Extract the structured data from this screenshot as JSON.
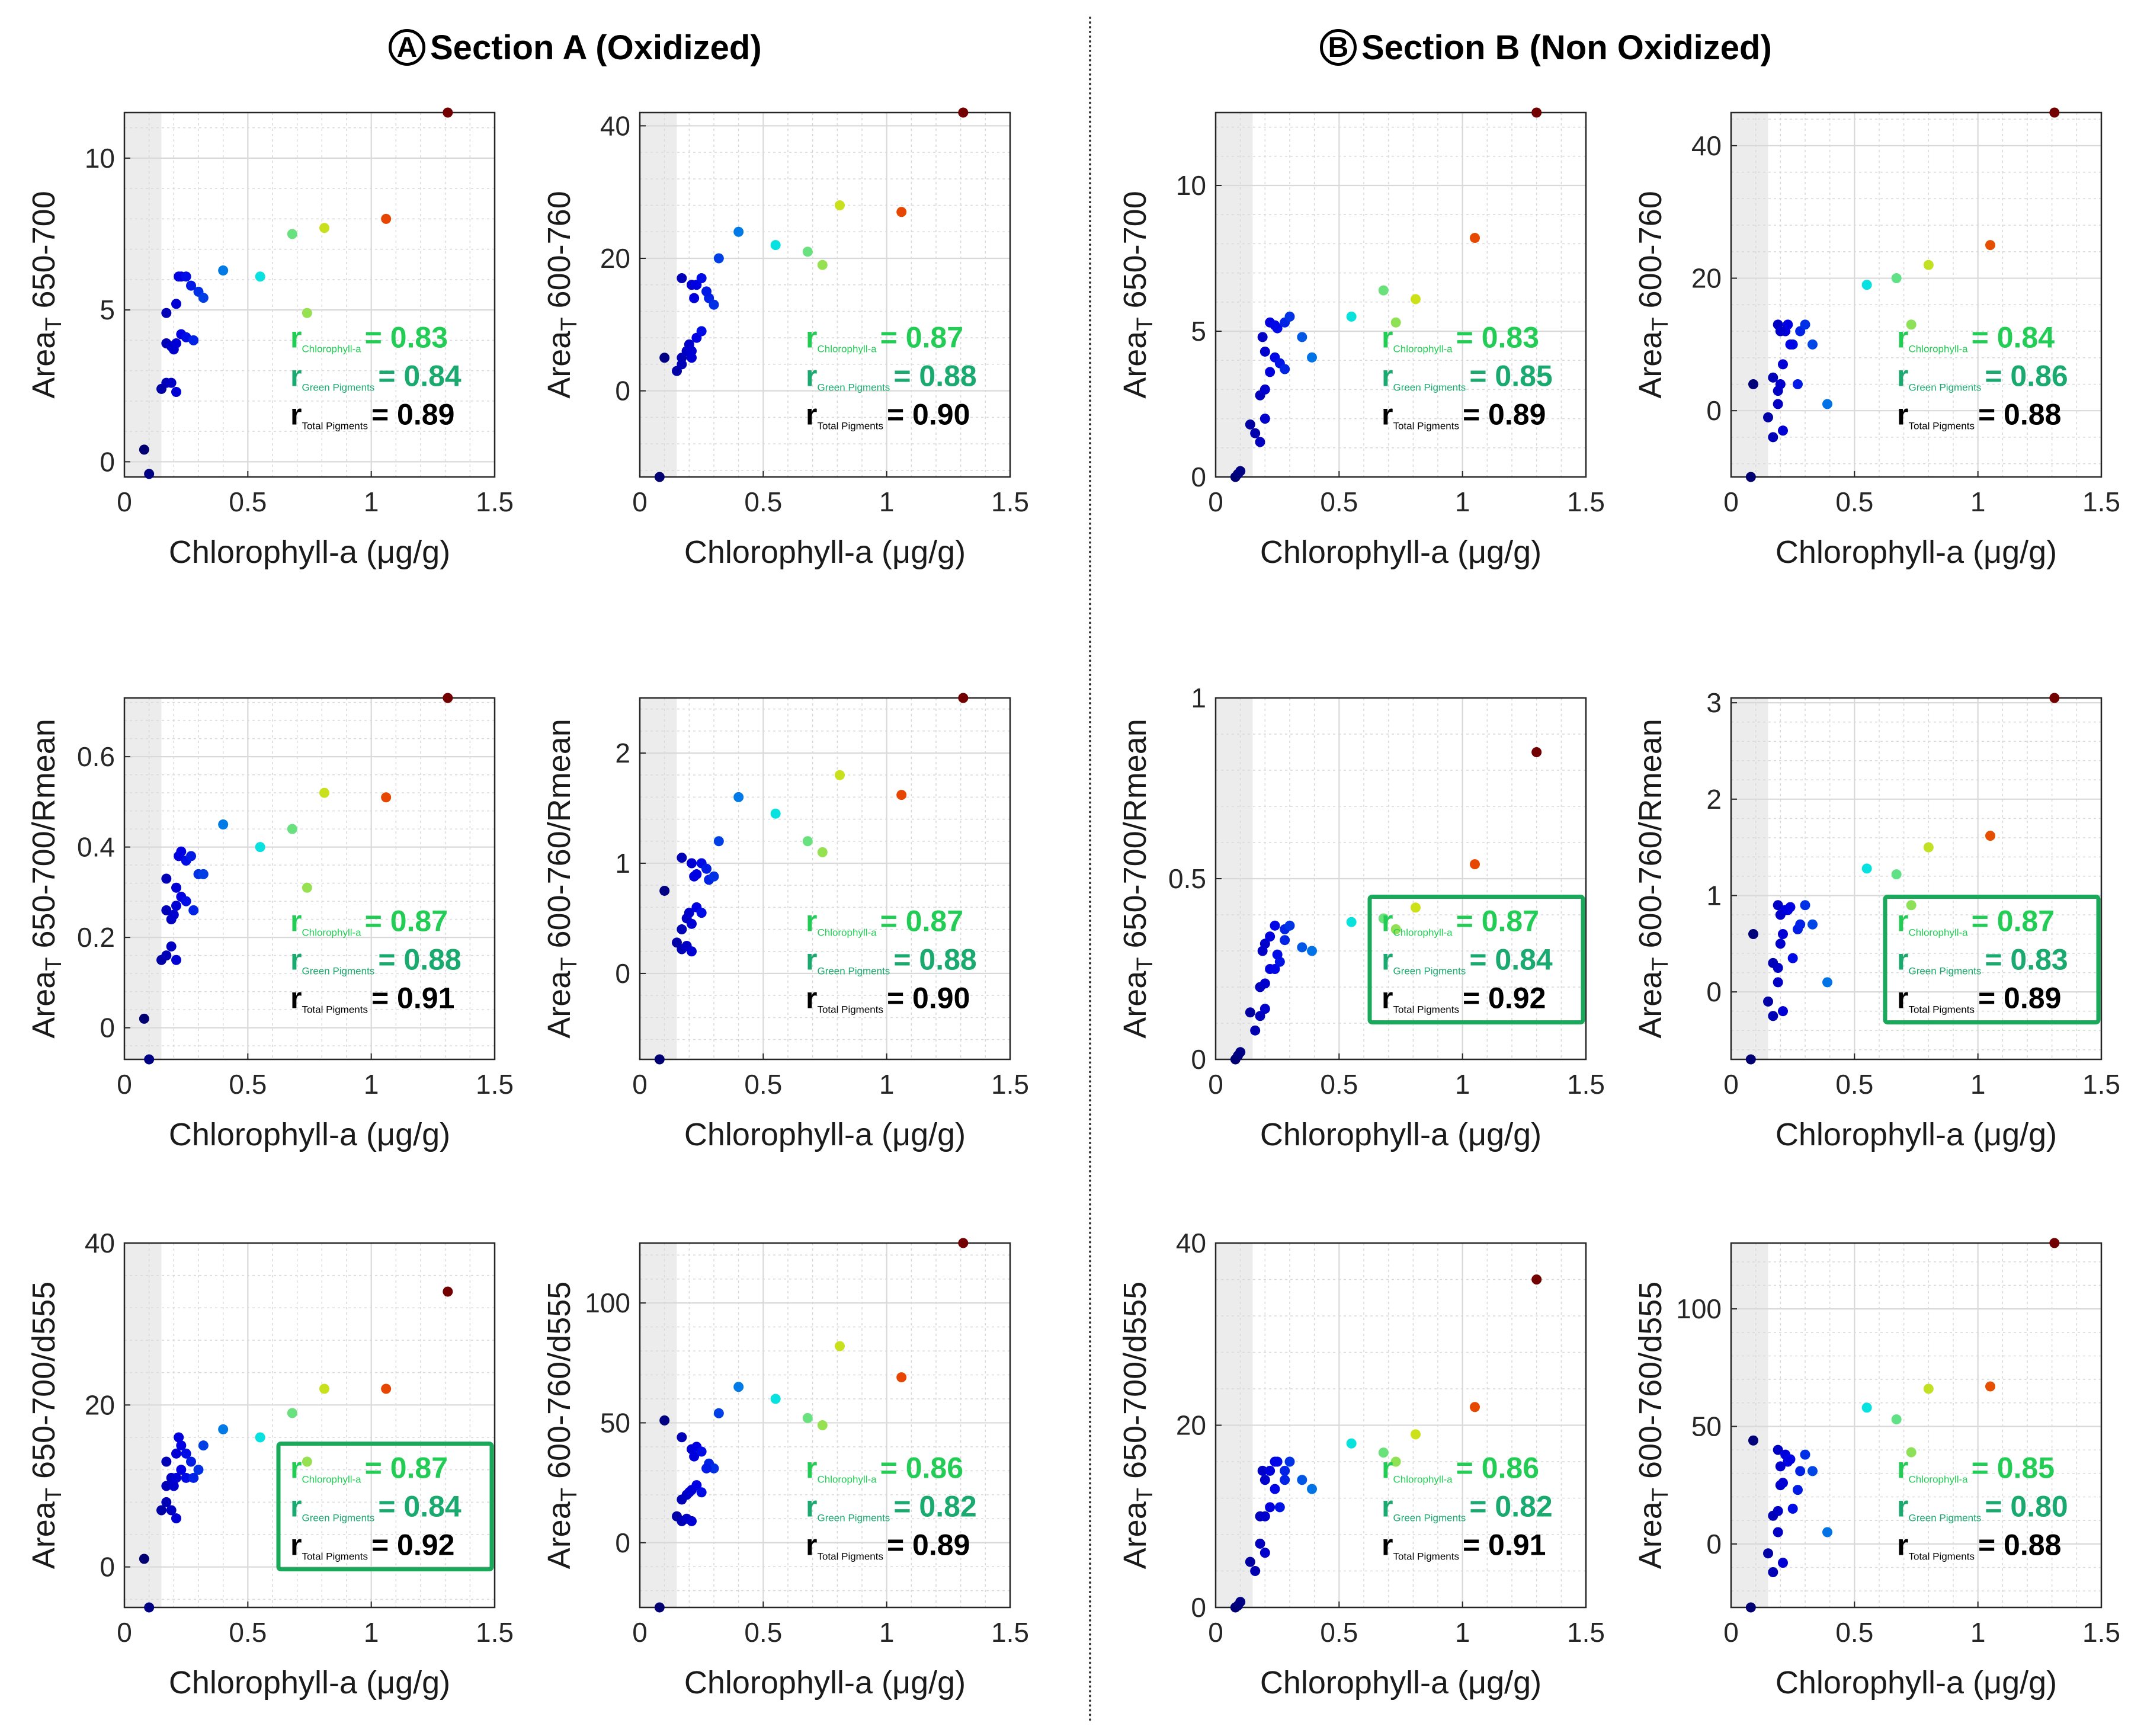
{
  "figure": {
    "section_a": {
      "letter": "A",
      "title": "Section A (Oxidized)"
    },
    "section_b": {
      "letter": "B",
      "title": "Section B (Non Oxidized)"
    },
    "xlabel": "Chlorophyll-a (μg/g)",
    "colors": {
      "axis_box": "#262626",
      "grid": "#d9d9d9",
      "shade": "#ececec",
      "green_r": "#22cc55",
      "teal_r": "#1aaa70",
      "highlight_border": "#1aa85a"
    }
  },
  "chart_data": [
    {
      "id": "A11",
      "section": "A",
      "type": "scatter",
      "ylabel_main": "Area",
      "ylabel_sub": "T",
      "ylabel_rest": " 650-700",
      "xlim": [
        0,
        1.5
      ],
      "ylim": [
        -0.5,
        11.5
      ],
      "xticks": [
        0,
        0.5,
        1,
        1.5
      ],
      "yticks": [
        0,
        5,
        10
      ],
      "x": [
        0.08,
        0.1,
        0.15,
        0.17,
        0.19,
        0.21,
        0.17,
        0.19,
        0.2,
        0.21,
        0.23,
        0.25,
        0.17,
        0.21,
        0.28,
        0.3,
        0.22,
        0.23,
        0.25,
        0.27,
        0.32,
        0.4,
        0.55,
        0.68,
        0.74,
        0.81,
        1.06,
        1.31
      ],
      "y": [
        0.4,
        -0.4,
        2.4,
        2.6,
        2.6,
        2.3,
        3.9,
        3.8,
        3.7,
        3.9,
        4.2,
        4.1,
        4.9,
        5.2,
        4.0,
        5.6,
        6.1,
        6.1,
        6.1,
        5.8,
        5.4,
        6.3,
        6.1,
        7.5,
        4.9,
        7.7,
        8.0,
        11.5
      ],
      "annotation": {
        "r_chl_label": "Chlorophyll-a",
        "r_chl": "= 0.83",
        "r_green_label": "Green Pigments",
        "r_green": "= 0.84",
        "r_total_label": "Total Pigments",
        "r_total": "= 0.89",
        "boxed": false
      }
    },
    {
      "id": "A12",
      "section": "A",
      "type": "scatter",
      "ylabel_main": "Area",
      "ylabel_sub": "T",
      "ylabel_rest": " 600-760",
      "xlim": [
        0,
        1.5
      ],
      "ylim": [
        -13,
        42
      ],
      "xticks": [
        0,
        0.5,
        1,
        1.5
      ],
      "yticks": [
        0,
        20,
        40
      ],
      "x": [
        0.08,
        0.1,
        0.15,
        0.17,
        0.19,
        0.21,
        0.17,
        0.19,
        0.2,
        0.21,
        0.23,
        0.25,
        0.17,
        0.21,
        0.28,
        0.3,
        0.22,
        0.23,
        0.25,
        0.27,
        0.32,
        0.4,
        0.55,
        0.68,
        0.74,
        0.81,
        1.06,
        1.31
      ],
      "y": [
        -13,
        5,
        3,
        5,
        6,
        5,
        4,
        6,
        7,
        6,
        8,
        9,
        17,
        16,
        14,
        13,
        14,
        16,
        17,
        15,
        20,
        24,
        22,
        21,
        19,
        28,
        27,
        42
      ],
      "annotation": {
        "r_chl_label": "Chlorophyll-a",
        "r_chl": "= 0.87",
        "r_green_label": "Green Pigments",
        "r_green": "= 0.88",
        "r_total_label": "Total Pigments",
        "r_total": "= 0.90",
        "boxed": false
      }
    },
    {
      "id": "B11",
      "section": "B",
      "type": "scatter",
      "ylabel_main": "Area",
      "ylabel_sub": "T",
      "ylabel_rest": " 650-700",
      "xlim": [
        0,
        1.5
      ],
      "ylim": [
        0,
        12.5
      ],
      "xticks": [
        0,
        0.5,
        1,
        1.5
      ],
      "yticks": [
        0,
        5,
        10
      ],
      "x": [
        0.08,
        0.09,
        0.1,
        0.14,
        0.16,
        0.18,
        0.2,
        0.18,
        0.2,
        0.22,
        0.24,
        0.26,
        0.19,
        0.2,
        0.25,
        0.28,
        0.22,
        0.24,
        0.28,
        0.3,
        0.35,
        0.39,
        0.55,
        0.68,
        0.73,
        0.81,
        1.05,
        1.3
      ],
      "y": [
        0,
        0.1,
        0.2,
        1.8,
        1.5,
        1.2,
        2.0,
        2.8,
        3.0,
        3.6,
        4.1,
        3.9,
        4.8,
        4.3,
        5.1,
        3.7,
        5.3,
        5.2,
        5.3,
        5.5,
        4.8,
        4.1,
        5.5,
        6.4,
        5.3,
        6.1,
        8.2,
        12.5
      ],
      "annotation": {
        "r_chl_label": "Chlorophyll-a",
        "r_chl": "= 0.83",
        "r_green_label": "Green Pigments",
        "r_green": "= 0.85",
        "r_total_label": "Total Pigments",
        "r_total": "= 0.89",
        "boxed": false
      }
    },
    {
      "id": "B12",
      "section": "B",
      "type": "scatter",
      "ylabel_main": "Area",
      "ylabel_sub": "T",
      "ylabel_rest": " 600-760",
      "xlim": [
        0,
        1.5
      ],
      "ylim": [
        -10,
        45
      ],
      "xticks": [
        0,
        0.5,
        1,
        1.5
      ],
      "yticks": [
        0,
        20,
        40
      ],
      "x": [
        0.08,
        0.09,
        0.15,
        0.17,
        0.19,
        0.21,
        0.17,
        0.19,
        0.2,
        0.21,
        0.25,
        0.27,
        0.19,
        0.22,
        0.24,
        0.28,
        0.2,
        0.23,
        0.3,
        0.33,
        0.39,
        0.55,
        0.67,
        0.73,
        0.8,
        1.05,
        1.31
      ],
      "y": [
        -10,
        4,
        -1,
        -4,
        1,
        -3,
        5,
        3,
        4,
        7,
        10,
        4,
        13,
        12,
        10,
        12,
        12,
        13,
        13,
        10,
        1,
        19,
        20,
        13,
        22,
        25,
        45
      ],
      "annotation": {
        "r_chl_label": "Chlorophyll-a",
        "r_chl": "= 0.84",
        "r_green_label": "Green Pigments",
        "r_green": "= 0.86",
        "r_total_label": "Total Pigments",
        "r_total": "= 0.88",
        "boxed": false
      }
    },
    {
      "id": "A21",
      "section": "A",
      "type": "scatter",
      "ylabel_main": "Area",
      "ylabel_sub": "T",
      "ylabel_rest": " 650-700/Rmean",
      "xlim": [
        0,
        1.5
      ],
      "ylim": [
        -0.07,
        0.73
      ],
      "xticks": [
        0,
        0.5,
        1,
        1.5
      ],
      "yticks": [
        0,
        0.2,
        0.4,
        0.6
      ],
      "x": [
        0.08,
        0.1,
        0.15,
        0.17,
        0.19,
        0.21,
        0.17,
        0.19,
        0.2,
        0.21,
        0.23,
        0.25,
        0.17,
        0.21,
        0.28,
        0.3,
        0.22,
        0.23,
        0.25,
        0.27,
        0.32,
        0.4,
        0.55,
        0.68,
        0.74,
        0.81,
        1.06,
        1.31
      ],
      "y": [
        0.02,
        -0.07,
        0.15,
        0.16,
        0.18,
        0.15,
        0.26,
        0.24,
        0.25,
        0.27,
        0.29,
        0.28,
        0.33,
        0.31,
        0.26,
        0.34,
        0.38,
        0.39,
        0.37,
        0.38,
        0.34,
        0.45,
        0.4,
        0.44,
        0.31,
        0.52,
        0.51,
        0.73
      ],
      "annotation": {
        "r_chl_label": "Chlorophyll-a",
        "r_chl": "= 0.87",
        "r_green_label": "Green Pigments",
        "r_green": "= 0.88",
        "r_total_label": "Total Pigments",
        "r_total": "= 0.91",
        "boxed": false
      }
    },
    {
      "id": "A22",
      "section": "A",
      "type": "scatter",
      "ylabel_main": "Area",
      "ylabel_sub": "T",
      "ylabel_rest": " 600-760/Rmean",
      "xlim": [
        0,
        1.5
      ],
      "ylim": [
        -0.78,
        2.5
      ],
      "xticks": [
        0,
        0.5,
        1,
        1.5
      ],
      "yticks": [
        0,
        1,
        2
      ],
      "x": [
        0.08,
        0.1,
        0.15,
        0.17,
        0.19,
        0.21,
        0.17,
        0.19,
        0.2,
        0.21,
        0.23,
        0.25,
        0.17,
        0.21,
        0.28,
        0.3,
        0.22,
        0.23,
        0.25,
        0.27,
        0.32,
        0.4,
        0.55,
        0.68,
        0.74,
        0.81,
        1.06,
        1.31
      ],
      "y": [
        -0.78,
        0.75,
        0.28,
        0.22,
        0.25,
        0.2,
        0.4,
        0.5,
        0.55,
        0.45,
        0.6,
        0.55,
        1.05,
        1.0,
        0.85,
        0.88,
        0.88,
        0.9,
        1.0,
        0.95,
        1.2,
        1.6,
        1.45,
        1.2,
        1.1,
        1.8,
        1.62,
        2.5
      ],
      "annotation": {
        "r_chl_label": "Chlorophyll-a",
        "r_chl": "= 0.87",
        "r_green_label": "Green Pigments",
        "r_green": "= 0.88",
        "r_total_label": "Total Pigments",
        "r_total": "= 0.90",
        "boxed": false
      }
    },
    {
      "id": "B21",
      "section": "B",
      "type": "scatter",
      "ylabel_main": "Area",
      "ylabel_sub": "T",
      "ylabel_rest": " 650-700/Rmean",
      "xlim": [
        0,
        1.5
      ],
      "ylim": [
        0,
        1
      ],
      "xticks": [
        0,
        0.5,
        1,
        1.5
      ],
      "yticks": [
        0,
        0.5,
        1
      ],
      "x": [
        0.08,
        0.09,
        0.1,
        0.14,
        0.16,
        0.18,
        0.2,
        0.18,
        0.2,
        0.22,
        0.24,
        0.26,
        0.19,
        0.2,
        0.25,
        0.28,
        0.22,
        0.24,
        0.28,
        0.3,
        0.35,
        0.39,
        0.55,
        0.68,
        0.73,
        0.81,
        1.05,
        1.3
      ],
      "y": [
        0.0,
        0.01,
        0.02,
        0.13,
        0.08,
        0.12,
        0.14,
        0.2,
        0.21,
        0.25,
        0.25,
        0.27,
        0.3,
        0.32,
        0.29,
        0.33,
        0.34,
        0.37,
        0.36,
        0.37,
        0.31,
        0.3,
        0.38,
        0.39,
        0.36,
        0.42,
        0.54,
        0.85
      ],
      "annotation": {
        "r_chl_label": "Chlorophyll-a",
        "r_chl": "= 0.87",
        "r_green_label": "Green Pigments",
        "r_green": "= 0.84",
        "r_total_label": "Total Pigments",
        "r_total": "= 0.92",
        "boxed": true
      }
    },
    {
      "id": "B22",
      "section": "B",
      "type": "scatter",
      "ylabel_main": "Area",
      "ylabel_sub": "T",
      "ylabel_rest": " 600-760/Rmean",
      "xlim": [
        0,
        1.5
      ],
      "ylim": [
        -0.7,
        3.05
      ],
      "xticks": [
        0,
        0.5,
        1,
        1.5
      ],
      "yticks": [
        0,
        1,
        2,
        3
      ],
      "x": [
        0.08,
        0.09,
        0.15,
        0.17,
        0.19,
        0.21,
        0.17,
        0.19,
        0.2,
        0.21,
        0.25,
        0.27,
        0.19,
        0.22,
        0.24,
        0.28,
        0.2,
        0.23,
        0.3,
        0.33,
        0.39,
        0.55,
        0.67,
        0.73,
        0.8,
        1.05,
        1.31
      ],
      "y": [
        -0.7,
        0.6,
        -0.1,
        -0.25,
        0.1,
        -0.2,
        0.3,
        0.25,
        0.5,
        0.6,
        0.35,
        0.65,
        0.9,
        0.85,
        0.88,
        0.7,
        0.8,
        0.85,
        0.9,
        0.7,
        0.1,
        1.28,
        1.22,
        0.9,
        1.5,
        1.62,
        3.05
      ],
      "annotation": {
        "r_chl_label": "Chlorophyll-a",
        "r_chl": "= 0.87",
        "r_green_label": "Green Pigments",
        "r_green": "= 0.83",
        "r_total_label": "Total Pigments",
        "r_total": "= 0.89",
        "boxed": true
      }
    },
    {
      "id": "A31",
      "section": "A",
      "type": "scatter",
      "ylabel_main": "Area",
      "ylabel_sub": "T",
      "ylabel_rest": " 650-700/d555",
      "xlim": [
        0,
        1.5
      ],
      "ylim": [
        -5,
        40
      ],
      "xticks": [
        0,
        0.5,
        1,
        1.5
      ],
      "yticks": [
        0,
        20,
        40
      ],
      "x": [
        0.08,
        0.1,
        0.15,
        0.17,
        0.19,
        0.21,
        0.17,
        0.19,
        0.2,
        0.21,
        0.23,
        0.25,
        0.17,
        0.21,
        0.28,
        0.3,
        0.22,
        0.23,
        0.25,
        0.27,
        0.32,
        0.4,
        0.55,
        0.68,
        0.74,
        0.81,
        1.06,
        1.31
      ],
      "y": [
        1,
        -5,
        7,
        8,
        7,
        6,
        10,
        11,
        10,
        11,
        12,
        11,
        13,
        14,
        11,
        12,
        16,
        15,
        14,
        13,
        15,
        17,
        16,
        19,
        13,
        22,
        22,
        34
      ],
      "annotation": {
        "r_chl_label": "Chlorophyll-a",
        "r_chl": "= 0.87",
        "r_green_label": "Green Pigments",
        "r_green": "= 0.84",
        "r_total_label": "Total Pigments",
        "r_total": "= 0.92",
        "boxed": true
      }
    },
    {
      "id": "A32",
      "section": "A",
      "type": "scatter",
      "ylabel_main": "Area",
      "ylabel_sub": "T",
      "ylabel_rest": " 600-760/d555",
      "xlim": [
        0,
        1.5
      ],
      "ylim": [
        -27,
        125
      ],
      "xticks": [
        0,
        0.5,
        1,
        1.5
      ],
      "yticks": [
        0,
        50,
        100
      ],
      "x": [
        0.08,
        0.1,
        0.15,
        0.17,
        0.19,
        0.21,
        0.17,
        0.19,
        0.2,
        0.21,
        0.23,
        0.25,
        0.17,
        0.21,
        0.28,
        0.3,
        0.22,
        0.23,
        0.25,
        0.27,
        0.32,
        0.4,
        0.55,
        0.68,
        0.74,
        0.81,
        1.06,
        1.31
      ],
      "y": [
        -27,
        51,
        11,
        9,
        10,
        9,
        18,
        20,
        21,
        22,
        24,
        21,
        44,
        39,
        33,
        31,
        36,
        40,
        38,
        31,
        54,
        65,
        60,
        52,
        49,
        82,
        69,
        125
      ],
      "annotation": {
        "r_chl_label": "Chlorophyll-a",
        "r_chl": "= 0.86",
        "r_green_label": "Green Pigments",
        "r_green": "= 0.82",
        "r_total_label": "Total Pigments",
        "r_total": "= 0.89",
        "boxed": false
      }
    },
    {
      "id": "B31",
      "section": "B",
      "type": "scatter",
      "ylabel_main": "Area",
      "ylabel_sub": "T",
      "ylabel_rest": " 650-700/d555",
      "xlim": [
        0,
        1.5
      ],
      "ylim": [
        0,
        40
      ],
      "xticks": [
        0,
        0.5,
        1,
        1.5
      ],
      "yticks": [
        0,
        20,
        40
      ],
      "x": [
        0.08,
        0.09,
        0.1,
        0.14,
        0.16,
        0.18,
        0.2,
        0.18,
        0.2,
        0.22,
        0.24,
        0.26,
        0.19,
        0.2,
        0.25,
        0.28,
        0.22,
        0.24,
        0.28,
        0.3,
        0.35,
        0.39,
        0.55,
        0.68,
        0.73,
        0.81,
        1.05,
        1.3
      ],
      "y": [
        0,
        0.2,
        0.6,
        5,
        4,
        7,
        6,
        10,
        10,
        11,
        13,
        11,
        15,
        14,
        16,
        15,
        15,
        16,
        14,
        16,
        14,
        13,
        18,
        17,
        16,
        19,
        22,
        36
      ],
      "annotation": {
        "r_chl_label": "Chlorophyll-a",
        "r_chl": "= 0.86",
        "r_green_label": "Green Pigments",
        "r_green": "= 0.82",
        "r_total_label": "Total Pigments",
        "r_total": "= 0.91",
        "boxed": false
      }
    },
    {
      "id": "B32",
      "section": "B",
      "type": "scatter",
      "ylabel_main": "Area",
      "ylabel_sub": "T",
      "ylabel_rest": " 600-760/d555",
      "xlim": [
        0,
        1.5
      ],
      "ylim": [
        -27,
        128
      ],
      "xticks": [
        0,
        0.5,
        1,
        1.5
      ],
      "yticks": [
        0,
        50,
        100
      ],
      "x": [
        0.08,
        0.09,
        0.15,
        0.17,
        0.19,
        0.21,
        0.17,
        0.19,
        0.2,
        0.21,
        0.25,
        0.27,
        0.19,
        0.22,
        0.24,
        0.28,
        0.2,
        0.23,
        0.3,
        0.33,
        0.39,
        0.55,
        0.67,
        0.73,
        0.8,
        1.05,
        1.31
      ],
      "y": [
        -27,
        44,
        -4,
        -12,
        5,
        -8,
        12,
        14,
        25,
        26,
        15,
        23,
        40,
        38,
        36,
        31,
        33,
        35,
        38,
        31,
        5,
        58,
        53,
        39,
        66,
        67,
        128
      ],
      "annotation": {
        "r_chl_label": "Chlorophyll-a",
        "r_chl": "= 0.85",
        "r_green_label": "Green Pigments",
        "r_green": "= 0.80",
        "r_total_label": "Total Pigments",
        "r_total": "= 0.88",
        "boxed": false
      }
    }
  ]
}
